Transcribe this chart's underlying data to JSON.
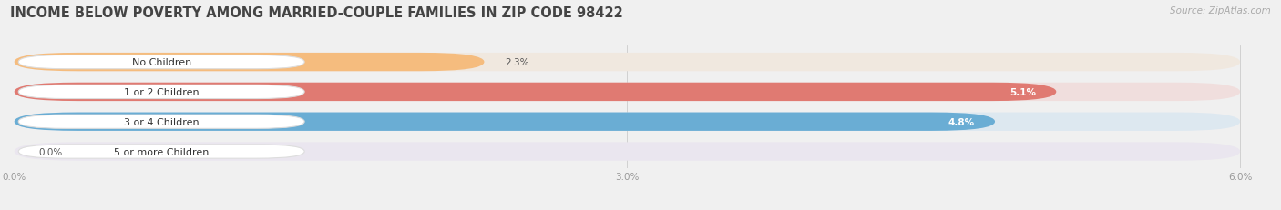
{
  "title": "INCOME BELOW POVERTY AMONG MARRIED-COUPLE FAMILIES IN ZIP CODE 98422",
  "source": "Source: ZipAtlas.com",
  "categories": [
    "No Children",
    "1 or 2 Children",
    "3 or 4 Children",
    "5 or more Children"
  ],
  "values": [
    2.3,
    5.1,
    4.8,
    0.0
  ],
  "bar_colors": [
    "#f5bc7e",
    "#e07a72",
    "#6aadd4",
    "#c4aed4"
  ],
  "bg_colors": [
    "#f0e8df",
    "#f0dedd",
    "#dde8f0",
    "#eae6ef"
  ],
  "xlim_max": 6.0,
  "xtick_labels": [
    "0.0%",
    "3.0%",
    "6.0%"
  ],
  "xtick_values": [
    0.0,
    3.0,
    6.0
  ],
  "title_fontsize": 10.5,
  "label_fontsize": 8,
  "value_fontsize": 7.5,
  "bar_height": 0.62,
  "title_color": "#444444",
  "source_color": "#aaaaaa",
  "tick_color": "#999999",
  "bg_fig": "#f0f0f0",
  "value_label_color_dark": "#555555",
  "value_label_color_white": "#ffffff"
}
